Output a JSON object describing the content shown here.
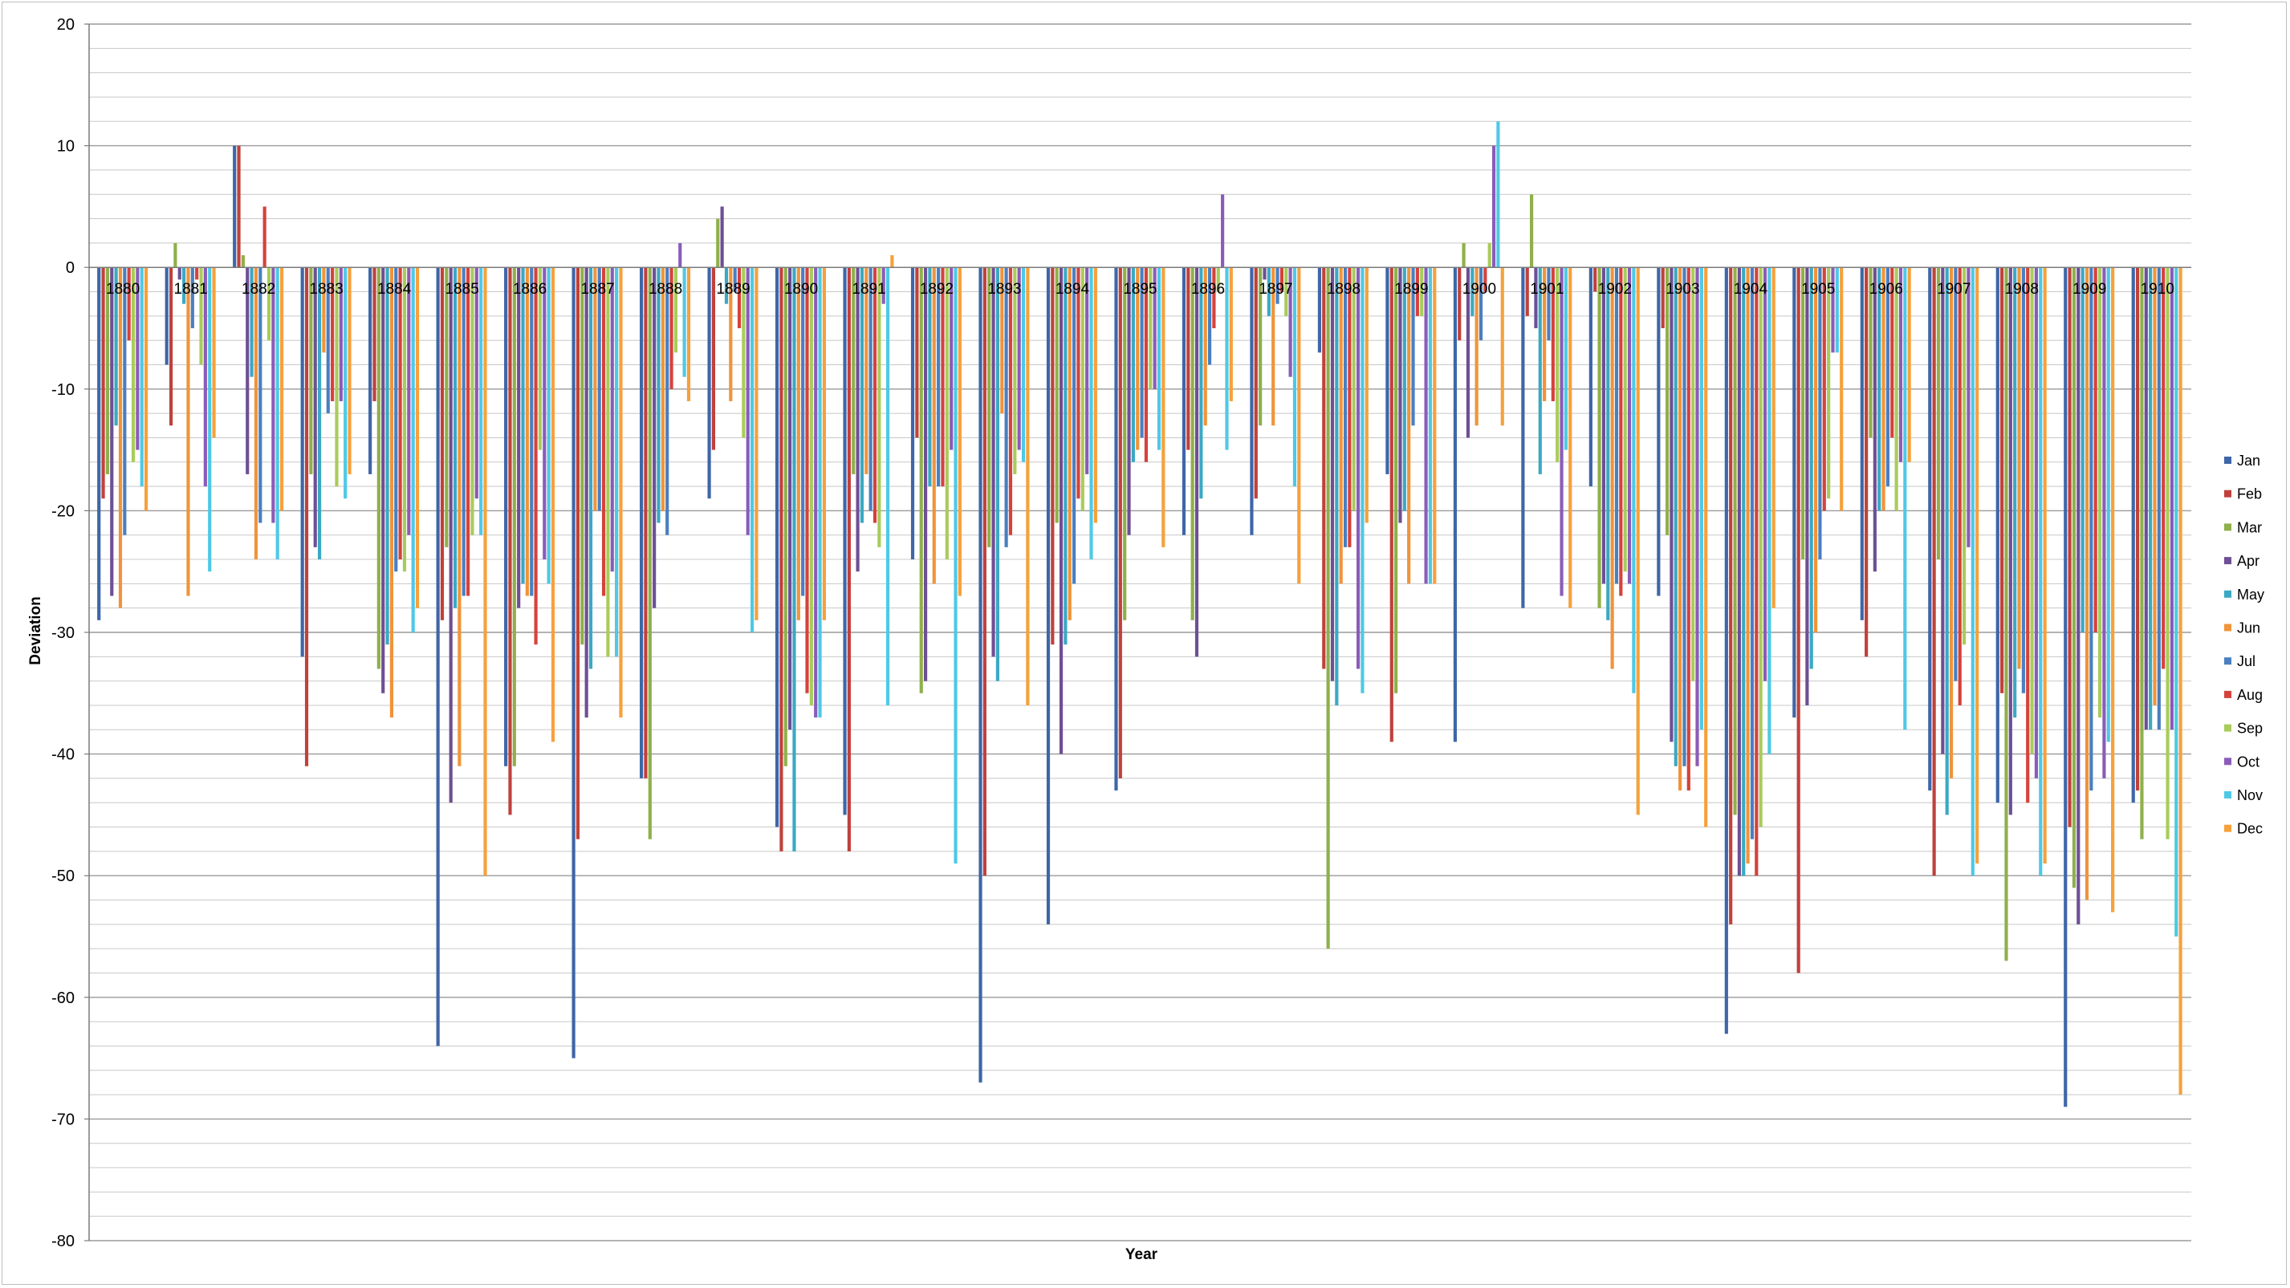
{
  "chart_data": {
    "type": "bar",
    "title": "",
    "xlabel": "Year",
    "ylabel": "Deviation",
    "ylim": [
      -80,
      20
    ],
    "y_ticks": [
      20,
      10,
      0,
      -10,
      -20,
      -30,
      -40,
      -50,
      -60,
      -70,
      -80
    ],
    "grid": true,
    "legend_position": "right",
    "categories": [
      "1880",
      "1881",
      "1882",
      "1883",
      "1884",
      "1885",
      "1886",
      "1887",
      "1888",
      "1889",
      "1890",
      "1891",
      "1892",
      "1893",
      "1894",
      "1895",
      "1896",
      "1897",
      "1898",
      "1899",
      "1900",
      "1901",
      "1902",
      "1903",
      "1904",
      "1905",
      "1906",
      "1907",
      "1908",
      "1909",
      "1910"
    ],
    "series": [
      {
        "name": "Jan",
        "color": "#3e66a8",
        "values": [
          -29,
          -8,
          10,
          -32,
          -17,
          -64,
          -41,
          -65,
          -42,
          -19,
          -46,
          -45,
          -24,
          -67,
          -54,
          -43,
          -22,
          -22,
          -7,
          -17,
          -39,
          -28,
          -18,
          -27,
          -63,
          -37,
          -29,
          -43,
          -44,
          -69,
          -44
        ]
      },
      {
        "name": "Feb",
        "color": "#c0413b",
        "values": [
          -19,
          -13,
          10,
          -41,
          -11,
          -29,
          -45,
          -47,
          -42,
          -15,
          -48,
          -48,
          -14,
          -50,
          -31,
          -42,
          -15,
          -19,
          -33,
          -39,
          -6,
          -4,
          -2,
          -5,
          -54,
          -58,
          -32,
          -50,
          -35,
          -46,
          -43
        ]
      },
      {
        "name": "Mar",
        "color": "#8fb04a",
        "values": [
          -17,
          2,
          1,
          -17,
          -33,
          -23,
          -41,
          -31,
          -47,
          4,
          -41,
          -17,
          -35,
          -23,
          -21,
          -29,
          -29,
          -13,
          -56,
          -35,
          2,
          6,
          -28,
          -22,
          -45,
          -24,
          -14,
          -24,
          -57,
          -51,
          -47
        ]
      },
      {
        "name": "Apr",
        "color": "#6e4f94",
        "values": [
          -27,
          -1,
          -17,
          -23,
          -35,
          -44,
          -28,
          -37,
          -28,
          5,
          -38,
          -25,
          -34,
          -32,
          -40,
          -22,
          -32,
          -1,
          -34,
          -21,
          -14,
          -5,
          -26,
          -39,
          -50,
          -36,
          -25,
          -40,
          -45,
          -54,
          -38
        ]
      },
      {
        "name": "May",
        "color": "#3aa9c4",
        "values": [
          -13,
          -3,
          -9,
          -24,
          -31,
          -28,
          -26,
          -33,
          -21,
          -3,
          -48,
          -21,
          -18,
          -34,
          -31,
          -16,
          -19,
          -4,
          -36,
          -20,
          -4,
          -17,
          -29,
          -41,
          -50,
          -33,
          -20,
          -45,
          -37,
          -30,
          -38
        ]
      },
      {
        "name": "Jun",
        "color": "#f0943a",
        "values": [
          -28,
          -27,
          -24,
          -7,
          -37,
          -41,
          -27,
          -20,
          -20,
          -11,
          -29,
          -17,
          -26,
          -12,
          -29,
          -15,
          -13,
          -13,
          -26,
          -26,
          -13,
          -11,
          -33,
          -43,
          -49,
          -30,
          -20,
          -42,
          -33,
          -52,
          -36
        ]
      },
      {
        "name": "Jul",
        "color": "#4a7fc0",
        "values": [
          -22,
          -5,
          -21,
          -12,
          -25,
          -27,
          -27,
          -20,
          -22,
          -2,
          -27,
          -20,
          -18,
          -23,
          -26,
          -14,
          -8,
          -3,
          -23,
          -13,
          -6,
          -6,
          -26,
          -41,
          -47,
          -24,
          -18,
          -34,
          -35,
          -43,
          -38
        ]
      },
      {
        "name": "Aug",
        "color": "#d5423c",
        "values": [
          -6,
          -1,
          5,
          -11,
          -24,
          -27,
          -31,
          -27,
          -10,
          -5,
          -35,
          -21,
          -18,
          -22,
          -19,
          -16,
          -5,
          -2,
          -23,
          -4,
          -2,
          -11,
          -27,
          -43,
          -50,
          -20,
          -14,
          -36,
          -44,
          -30,
          -33
        ]
      },
      {
        "name": "Sep",
        "color": "#a8cc5a",
        "values": [
          -16,
          -8,
          -6,
          -18,
          -25,
          -22,
          -15,
          -32,
          -7,
          -14,
          -36,
          -23,
          -24,
          -17,
          -20,
          -10,
          -2,
          -4,
          -20,
          -4,
          2,
          -16,
          -25,
          -34,
          -46,
          -19,
          -20,
          -31,
          -40,
          -37,
          -47
        ]
      },
      {
        "name": "Oct",
        "color": "#8a5cb8",
        "values": [
          -15,
          -18,
          -21,
          -11,
          -22,
          -19,
          -24,
          -25,
          2,
          -22,
          -37,
          -3,
          -15,
          -15,
          -17,
          -10,
          6,
          -9,
          -33,
          -26,
          10,
          -27,
          -26,
          -41,
          -34,
          -7,
          -16,
          -23,
          -42,
          -42,
          -38
        ]
      },
      {
        "name": "Nov",
        "color": "#4ec9e6",
        "values": [
          -18,
          -25,
          -24,
          -19,
          -30,
          -22,
          -26,
          -32,
          -9,
          -30,
          -37,
          -36,
          -49,
          -16,
          -24,
          -15,
          -15,
          -18,
          -35,
          -26,
          12,
          -15,
          -35,
          -38,
          -40,
          -7,
          -38,
          -50,
          -50,
          -39,
          -55
        ]
      },
      {
        "name": "Dec",
        "color": "#f6a13c",
        "values": [
          -20,
          -14,
          -20,
          -17,
          -28,
          -50,
          -39,
          -37,
          -11,
          -29,
          -29,
          1,
          -27,
          -36,
          -21,
          -23,
          -11,
          -26,
          -21,
          -26,
          -13,
          -28,
          -45,
          -46,
          -28,
          -20,
          -16,
          -49,
          -49,
          -53,
          -68
        ]
      }
    ]
  }
}
